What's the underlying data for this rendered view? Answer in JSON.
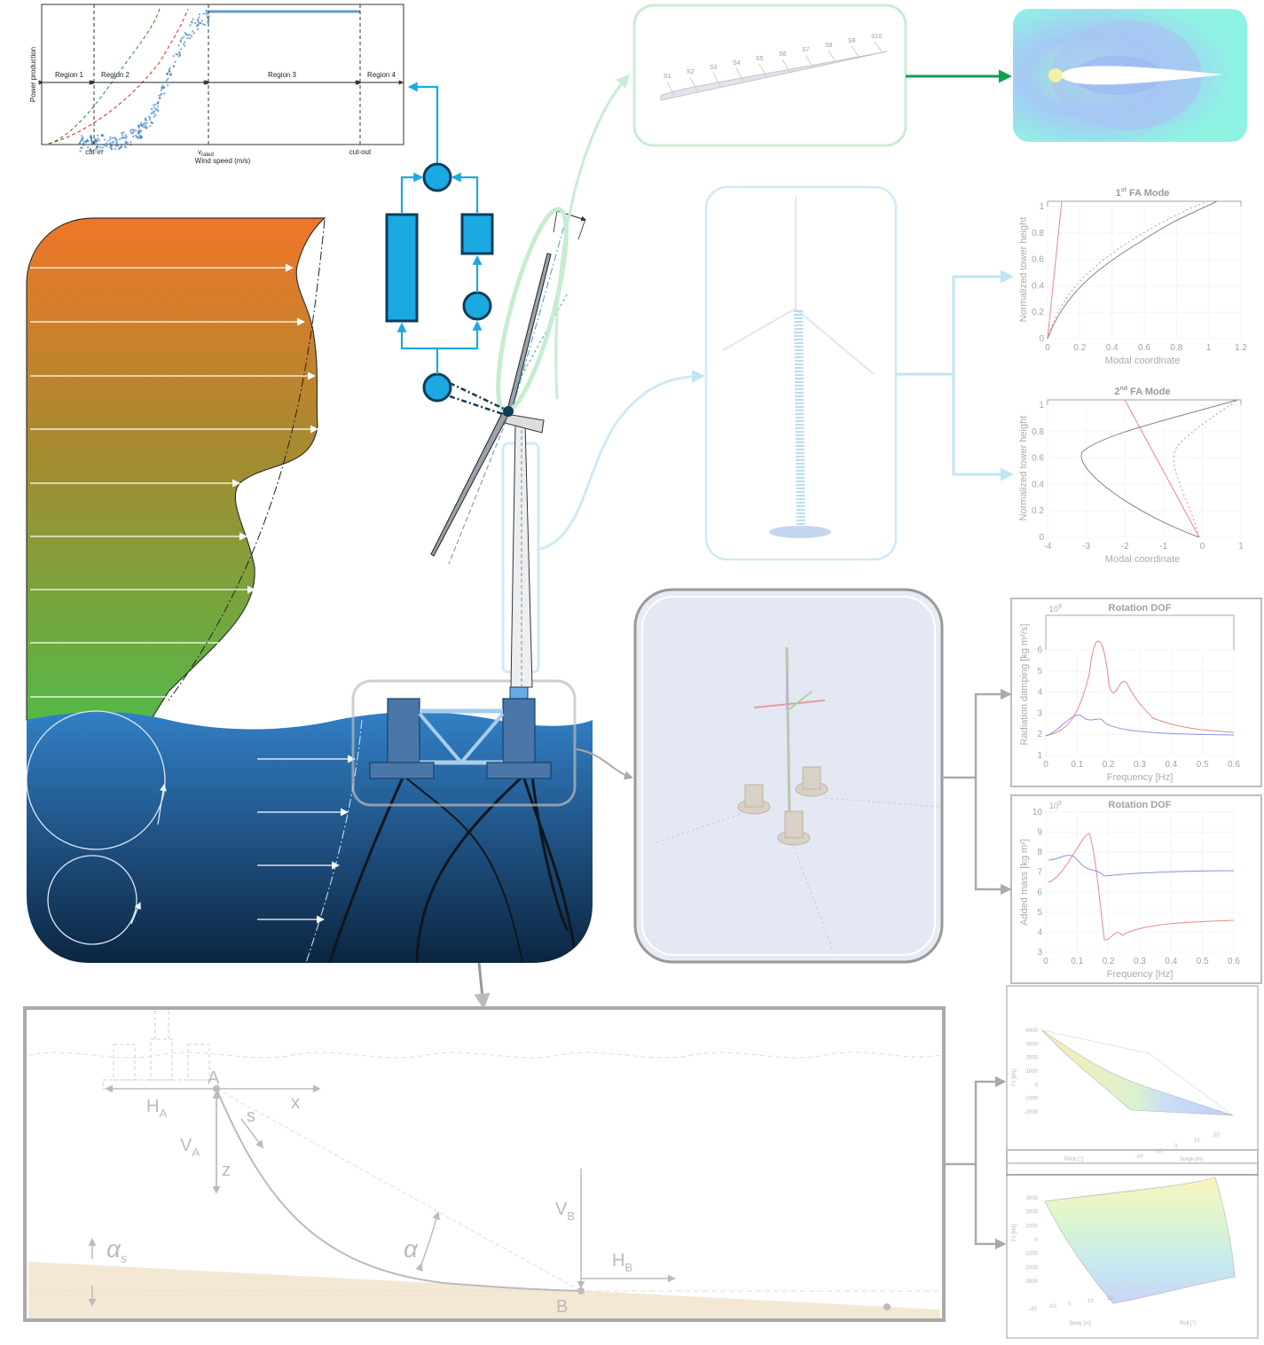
{
  "power_curve": {
    "xlabel": "Wind speed (m/s)",
    "ylabel": "Power production",
    "regions": [
      "Region 1",
      "Region 2",
      "Region 3",
      "Region 4"
    ],
    "ticks": {
      "cut_in": "cut-in",
      "v_rated": "v",
      "v_rated_sub": "rated",
      "cut_out": "cut-out"
    }
  },
  "blade": {
    "sections": [
      "S1",
      "S2",
      "S3",
      "S4",
      "S5",
      "S6",
      "S7",
      "S8",
      "S9",
      "S10"
    ]
  },
  "mode1": {
    "title_prefix": "1",
    "title_sup": "st",
    "title_rest": " FA Mode",
    "ylabel": "Normalized tower height",
    "xlabel": "Modal coordinate",
    "xticks": [
      "0",
      "0.2",
      "0.4",
      "0.6",
      "0.8",
      "1",
      "1.2"
    ],
    "yticks": [
      "0",
      "0.2",
      "0.4",
      "0.6",
      "0.8",
      "1"
    ]
  },
  "mode2": {
    "title_prefix": "2",
    "title_sup": "nd",
    "title_rest": " FA Mode",
    "ylabel": "Normalized tower height",
    "xlabel": "Modal coordinate",
    "xticks": [
      "-4",
      "-3",
      "-2",
      "-1",
      "0",
      "1"
    ],
    "yticks": [
      "0",
      "0.2",
      "0.4",
      "0.6",
      "0.8",
      "1"
    ]
  },
  "damping": {
    "title": "Rotation DOF",
    "scale": "10",
    "scale_exp": "9",
    "ylabel": "Radiation damping [kg  m²/s]",
    "xlabel": "Frequency [Hz]",
    "xticks": [
      "0",
      "0.1",
      "0.2",
      "0.3",
      "0.4",
      "0.5",
      "0.6"
    ],
    "yticks": [
      "1",
      "2",
      "3",
      "4",
      "5",
      "6"
    ]
  },
  "addedmass": {
    "title": "Rotation DOF",
    "scale": "10",
    "scale_exp": "9",
    "ylabel": "Added mass [kg  m²]",
    "xlabel": "Frequency [Hz]",
    "xticks": [
      "0",
      "0.1",
      "0.2",
      "0.3",
      "0.4",
      "0.5",
      "0.6"
    ],
    "yticks": [
      "3",
      "4",
      "5",
      "6",
      "7",
      "8",
      "9",
      "10"
    ]
  },
  "mooring": {
    "A": "A",
    "B": "B",
    "x": "x",
    "z": "z",
    "s": "s",
    "HA": "H",
    "HA_sub": "A",
    "VA": "V",
    "VA_sub": "A",
    "VB": "V",
    "VB_sub": "B",
    "HB": "H",
    "HB_sub": "B",
    "alpha": "α",
    "alpha_s": "α",
    "alpha_s_sub": "s"
  },
  "surface1": {
    "zlabel": "Fx [kN]",
    "xlabel": "Surge [m]",
    "ylabel": "Pitch [°]",
    "zticks": [
      "4000",
      "3000",
      "2000",
      "1000",
      "0",
      "-1000",
      "-2000"
    ],
    "xticks": [
      "-20",
      "-10",
      "0",
      "10",
      "20"
    ],
    "yticks": [
      "10",
      "5",
      "0",
      "-5",
      "-10"
    ]
  },
  "surface2": {
    "zlabel": "Fx [kN]",
    "xlabel": "Sway [m]",
    "ylabel": "Roll [°]",
    "zticks": [
      "3000",
      "2000",
      "1000",
      "0",
      "-1000",
      "-2000",
      "-3000"
    ],
    "xticks": [
      "-20",
      "-10",
      "0",
      "10",
      "20"
    ],
    "yticks": [
      "-10",
      "-5",
      "0",
      "5",
      "10"
    ]
  },
  "colors": {
    "control": "#1ba9e1",
    "control_dark": "#0c3d5a",
    "green_accent": "#0fa14b",
    "sea_top": "#2e7ec4",
    "sea_bottom": "#0b2540",
    "wind_top": "#f07628",
    "wind_bottom": "#5cb947"
  }
}
